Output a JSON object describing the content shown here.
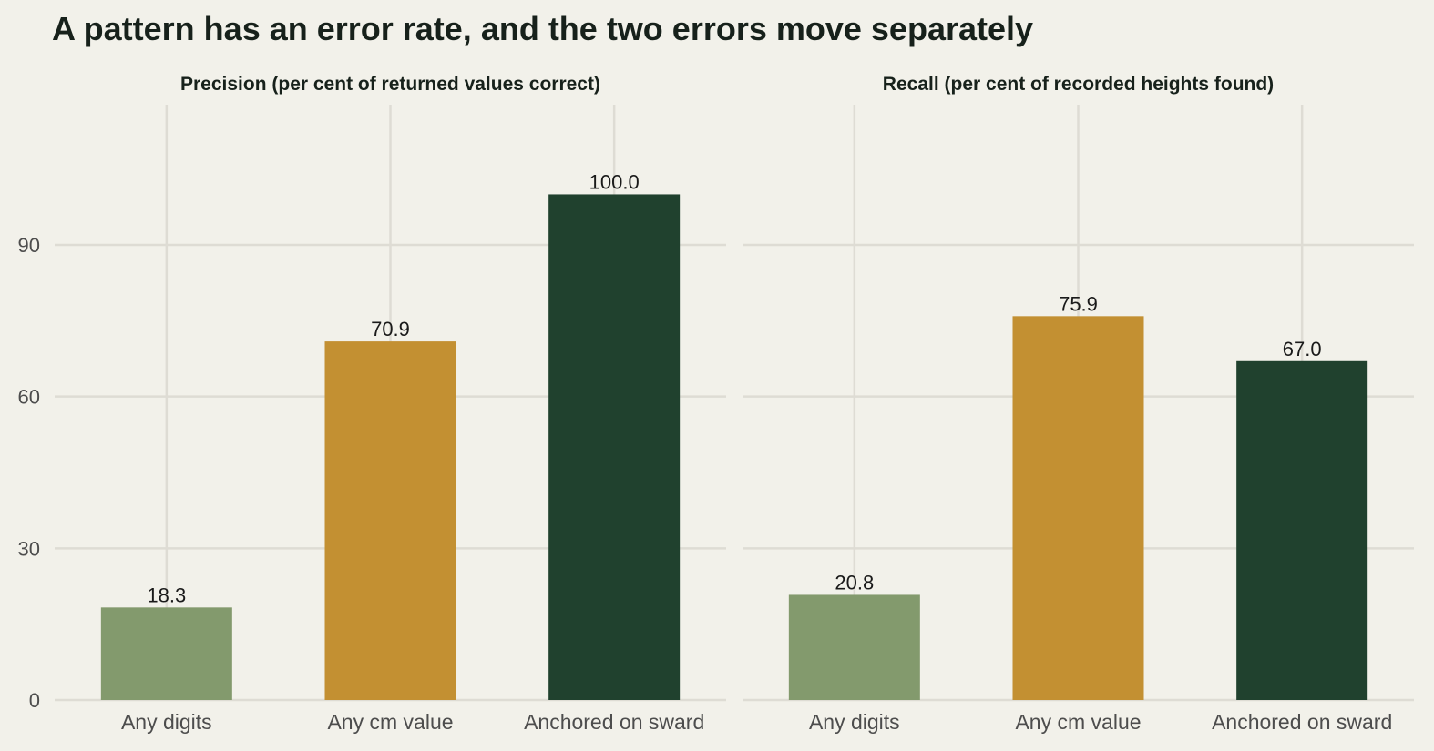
{
  "title": "A pattern has an error rate, and the two errors move separately",
  "colors": {
    "background": "#f2f1ea",
    "grid": "#dedcd4",
    "text": "#17211b",
    "axis_text": "#4d4d4d"
  },
  "chart_data": [
    {
      "type": "bar",
      "title": "Precision (per cent of returned values correct)",
      "categories": [
        "Any digits",
        "Any cm value",
        "Anchored on sward"
      ],
      "values": [
        18.3,
        70.9,
        100.0
      ],
      "value_labels": [
        "18.3",
        "70.9",
        "100.0"
      ],
      "bar_colors": [
        "#839a6d",
        "#c39032",
        "#20412e"
      ],
      "yticks": [
        0,
        30,
        60,
        90
      ],
      "ylim": [
        0,
        105
      ],
      "grid": true,
      "legend": "none"
    },
    {
      "type": "bar",
      "title": "Recall (per cent of recorded heights found)",
      "categories": [
        "Any digits",
        "Any cm value",
        "Anchored on sward"
      ],
      "values": [
        20.8,
        75.9,
        67.0
      ],
      "value_labels": [
        "20.8",
        "75.9",
        "67.0"
      ],
      "bar_colors": [
        "#839a6d",
        "#c39032",
        "#20412e"
      ],
      "yticks": [
        0,
        30,
        60,
        90
      ],
      "ylim": [
        0,
        105
      ],
      "grid": true,
      "legend": "none"
    }
  ]
}
